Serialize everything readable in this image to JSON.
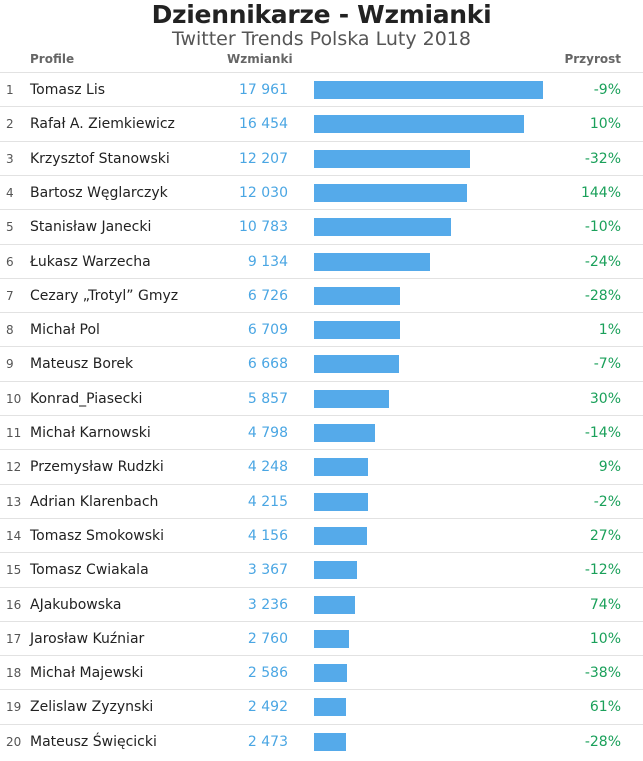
{
  "title": "Dziennikarze - Wzmianki",
  "subtitle": "Twitter Trends Polska Luty 2018",
  "columns": {
    "profile": "Profile",
    "mentions": "Wzmianki",
    "growth": "Przyrost"
  },
  "colors": {
    "bar": "#55aaea",
    "value": "#4aa6e3",
    "growth": "#1aa05a"
  },
  "chart_data": {
    "type": "bar",
    "title": "Dziennikarze - Wzmianki",
    "subtitle": "Twitter Trends Polska Luty 2018",
    "orientation": "horizontal",
    "xlim": [
      0,
      17961
    ],
    "categories": [
      "Tomasz Lis",
      "Rafał A. Ziemkiewicz",
      "Krzysztof Stanowski",
      "Bartosz Węglarczyk",
      "Stanisław Janecki",
      "Łukasz Warzecha",
      "Cezary „Trotyl” Gmyz",
      "Michał Pol",
      "Mateusz Borek",
      "Konrad_Piasecki",
      "Michał Karnowski",
      "Przemysław Rudzki",
      "Adrian Klarenbach",
      "Tomasz Smokowski",
      "Tomasz Cwiakala",
      "AJakubowska",
      "Jarosław Kuźniar",
      "Michał Majewski",
      "Zelislaw Zyzynski",
      "Mateusz Święcicki"
    ],
    "series": [
      {
        "name": "Wzmianki",
        "values": [
          17961,
          16454,
          12207,
          12030,
          10783,
          9134,
          6726,
          6709,
          6668,
          5857,
          4798,
          4248,
          4215,
          4156,
          3367,
          3236,
          2760,
          2586,
          2492,
          2473
        ]
      }
    ],
    "rows": [
      {
        "rank": "1",
        "name": "Tomasz Lis",
        "value": 17961,
        "value_label": "17 961",
        "growth": "-9%"
      },
      {
        "rank": "2",
        "name": "Rafał A. Ziemkiewicz",
        "value": 16454,
        "value_label": "16 454",
        "growth": "10%"
      },
      {
        "rank": "3",
        "name": "Krzysztof Stanowski",
        "value": 12207,
        "value_label": "12 207",
        "growth": "-32%"
      },
      {
        "rank": "4",
        "name": "Bartosz Węglarczyk",
        "value": 12030,
        "value_label": "12 030",
        "growth": "144%"
      },
      {
        "rank": "5",
        "name": "Stanisław Janecki",
        "value": 10783,
        "value_label": "10 783",
        "growth": "-10%"
      },
      {
        "rank": "6",
        "name": "Łukasz Warzecha",
        "value": 9134,
        "value_label": "9 134",
        "growth": "-24%"
      },
      {
        "rank": "7",
        "name": "Cezary „Trotyl” Gmyz",
        "value": 6726,
        "value_label": "6 726",
        "growth": "-28%"
      },
      {
        "rank": "8",
        "name": "Michał Pol",
        "value": 6709,
        "value_label": "6 709",
        "growth": "1%"
      },
      {
        "rank": "9",
        "name": "Mateusz Borek",
        "value": 6668,
        "value_label": "6 668",
        "growth": "-7%"
      },
      {
        "rank": "10",
        "name": "Konrad_Piasecki",
        "value": 5857,
        "value_label": "5 857",
        "growth": "30%"
      },
      {
        "rank": "11",
        "name": "Michał Karnowski",
        "value": 4798,
        "value_label": "4 798",
        "growth": "-14%"
      },
      {
        "rank": "12",
        "name": "Przemysław Rudzki",
        "value": 4248,
        "value_label": "4 248",
        "growth": "9%"
      },
      {
        "rank": "13",
        "name": "Adrian Klarenbach",
        "value": 4215,
        "value_label": "4 215",
        "growth": "-2%"
      },
      {
        "rank": "14",
        "name": "Tomasz Smokowski",
        "value": 4156,
        "value_label": "4 156",
        "growth": "27%"
      },
      {
        "rank": "15",
        "name": "Tomasz Cwiakala",
        "value": 3367,
        "value_label": "3 367",
        "growth": "-12%"
      },
      {
        "rank": "16",
        "name": "AJakubowska",
        "value": 3236,
        "value_label": "3 236",
        "growth": "74%"
      },
      {
        "rank": "17",
        "name": "Jarosław Kuźniar",
        "value": 2760,
        "value_label": "2 760",
        "growth": "10%"
      },
      {
        "rank": "18",
        "name": "Michał Majewski",
        "value": 2586,
        "value_label": "2 586",
        "growth": "-38%"
      },
      {
        "rank": "19",
        "name": "Zelislaw Zyzynski",
        "value": 2492,
        "value_label": "2 492",
        "growth": "61%"
      },
      {
        "rank": "20",
        "name": "Mateusz Święcicki",
        "value": 2473,
        "value_label": "2 473",
        "growth": "-28%"
      }
    ]
  }
}
